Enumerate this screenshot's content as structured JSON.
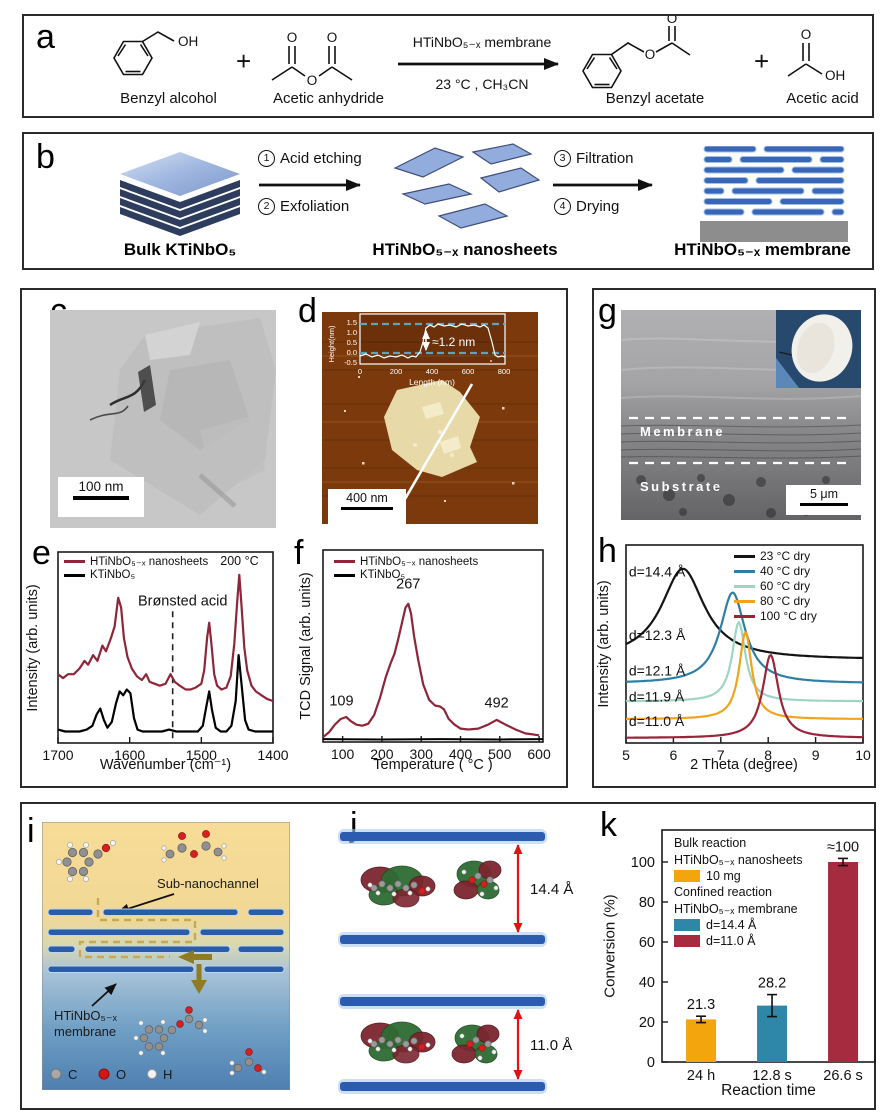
{
  "letters": {
    "a": "a",
    "b": "b",
    "c": "c",
    "d": "d",
    "e": "e",
    "f": "f",
    "g": "g",
    "h": "h",
    "i": "i",
    "j": "j",
    "k": "k"
  },
  "panel_a": {
    "reactant1_label": "Benzyl alcohol",
    "reactant2_label": "Acetic anhydride",
    "product1_label": "Benzyl acetate",
    "product2_label": "Acetic acid",
    "plus": "+",
    "arrow_top": "HTiNbO₅₋ₓ membrane",
    "arrow_bottom": "23 °C , CH₃CN",
    "atom_o": "O",
    "atom_oh": "OH"
  },
  "panel_b": {
    "steps": [
      {
        "num": "1",
        "label": "Acid etching"
      },
      {
        "num": "2",
        "label": "Exfoliation"
      },
      {
        "num": "3",
        "label": "Filtration"
      },
      {
        "num": "4",
        "label": "Drying"
      }
    ],
    "bulk_label": "Bulk KTiNbO₅",
    "nanosheet_label": "HTiNbO₅₋ₓ nanosheets",
    "membrane_label": "HTiNbO₅₋ₓ membrane"
  },
  "panel_c": {
    "scale_label": "100 nm"
  },
  "panel_d": {
    "scale_label": "400 nm",
    "inset": {
      "ylabel": "Height(nm)",
      "xlabel": "Length (nm)",
      "yticks": [
        "1.5",
        "1.0",
        "0.5",
        "0.0",
        "-0.5"
      ],
      "xticks": [
        "0",
        "200",
        "400",
        "600",
        "800"
      ],
      "step_label": "≈1.2 nm"
    }
  },
  "panel_g": {
    "membrane_label": "Membrane",
    "substrate_label": "Substrate",
    "scale_label": "5 μm"
  },
  "panel_i": {
    "channel_label": "Sub-nanochannel",
    "membrane_label_line1": "HTiNbO₅₋ₓ",
    "membrane_label_line2": "membrane",
    "legend": [
      {
        "symbol": "C"
      },
      {
        "symbol": "O"
      },
      {
        "symbol": "H"
      }
    ]
  },
  "panel_j": {
    "gap_top_label": "14.4 Å",
    "gap_bottom_label": "11.0 Å"
  },
  "chart_data": {
    "e": {
      "type": "line",
      "xlabel": "Wavenumber (cm⁻¹)",
      "ylabel": "Intensity (arb. units)",
      "xmin": 1400,
      "xmax": 1700,
      "x_reversed": true,
      "xticks": [
        1700,
        1600,
        1500,
        1400
      ],
      "vline": 1540,
      "vline_top": 0.31,
      "legend": [
        {
          "label": "HTiNbO₅₋ₓ nanosheets",
          "color": "#8E2639"
        },
        {
          "label": "KTiNbO₅",
          "color": "#000000"
        }
      ],
      "legend_note": "200 °C",
      "annotations": [
        {
          "x": 1526,
          "y": 0.72,
          "text": "Brønsted acid",
          "fs": 14.5
        }
      ],
      "series": [
        {
          "name": "HTiNbO₅₋ₓ nanosheets",
          "color": "#8E2639",
          "width": 2.2,
          "points": [
            [
              1700,
              0.36
            ],
            [
              1693,
              0.34
            ],
            [
              1686,
              0.36
            ],
            [
              1678,
              0.36
            ],
            [
              1670,
              0.39
            ],
            [
              1663,
              0.43
            ],
            [
              1658,
              0.41
            ],
            [
              1651,
              0.46
            ],
            [
              1645,
              0.43
            ],
            [
              1638,
              0.51
            ],
            [
              1633,
              0.48
            ],
            [
              1626,
              0.55
            ],
            [
              1621,
              0.61
            ],
            [
              1616,
              0.76
            ],
            [
              1612,
              0.71
            ],
            [
              1608,
              0.55
            ],
            [
              1603,
              0.45
            ],
            [
              1597,
              0.39
            ],
            [
              1590,
              0.35
            ],
            [
              1583,
              0.33
            ],
            [
              1577,
              0.36
            ],
            [
              1572,
              0.32
            ],
            [
              1565,
              0.31
            ],
            [
              1558,
              0.3
            ],
            [
              1550,
              0.31
            ],
            [
              1543,
              0.36
            ],
            [
              1537,
              0.32
            ],
            [
              1530,
              0.3
            ],
            [
              1522,
              0.28
            ],
            [
              1515,
              0.28
            ],
            [
              1508,
              0.29
            ],
            [
              1500,
              0.31
            ],
            [
              1496,
              0.38
            ],
            [
              1492,
              0.55
            ],
            [
              1489,
              0.63
            ],
            [
              1486,
              0.52
            ],
            [
              1482,
              0.36
            ],
            [
              1478,
              0.3
            ],
            [
              1472,
              0.28
            ],
            [
              1465,
              0.29
            ],
            [
              1459,
              0.35
            ],
            [
              1454,
              0.52
            ],
            [
              1450,
              0.74
            ],
            [
              1447,
              0.88
            ],
            [
              1444,
              0.72
            ],
            [
              1440,
              0.5
            ],
            [
              1436,
              0.38
            ],
            [
              1430,
              0.3
            ],
            [
              1424,
              0.27
            ],
            [
              1416,
              0.25
            ],
            [
              1408,
              0.23
            ],
            [
              1400,
              0.22
            ]
          ]
        },
        {
          "name": "KTiNbO₅",
          "color": "#000000",
          "width": 2.2,
          "points": [
            [
              1700,
              0.07
            ],
            [
              1690,
              0.06
            ],
            [
              1680,
              0.06
            ],
            [
              1670,
              0.06
            ],
            [
              1660,
              0.07
            ],
            [
              1652,
              0.09
            ],
            [
              1646,
              0.15
            ],
            [
              1641,
              0.18
            ],
            [
              1636,
              0.12
            ],
            [
              1631,
              0.08
            ],
            [
              1625,
              0.11
            ],
            [
              1619,
              0.21
            ],
            [
              1614,
              0.27
            ],
            [
              1609,
              0.25
            ],
            [
              1604,
              0.28
            ],
            [
              1599,
              0.26
            ],
            [
              1594,
              0.13
            ],
            [
              1589,
              0.07
            ],
            [
              1582,
              0.06
            ],
            [
              1575,
              0.06
            ],
            [
              1565,
              0.06
            ],
            [
              1555,
              0.06
            ],
            [
              1545,
              0.07
            ],
            [
              1535,
              0.06
            ],
            [
              1525,
              0.06
            ],
            [
              1515,
              0.06
            ],
            [
              1505,
              0.06
            ],
            [
              1498,
              0.09
            ],
            [
              1493,
              0.19
            ],
            [
              1489,
              0.27
            ],
            [
              1485,
              0.17
            ],
            [
              1480,
              0.08
            ],
            [
              1473,
              0.06
            ],
            [
              1465,
              0.06
            ],
            [
              1458,
              0.09
            ],
            [
              1452,
              0.22
            ],
            [
              1448,
              0.46
            ],
            [
              1444,
              0.31
            ],
            [
              1439,
              0.12
            ],
            [
              1434,
              0.07
            ],
            [
              1425,
              0.06
            ],
            [
              1412,
              0.06
            ],
            [
              1400,
              0.06
            ]
          ]
        }
      ]
    },
    "f": {
      "type": "line",
      "xlabel": "Temperature ( °C )",
      "ylabel": "TCD Signal (arb. units)",
      "xmin": 50,
      "xmax": 610,
      "xticks": [
        100,
        200,
        300,
        400,
        500,
        600
      ],
      "legend": [
        {
          "label": "HTiNbO₅₋ₓ nanosheets",
          "color": "#8E2639"
        },
        {
          "label": "KTiNbO₅",
          "color": "#000000"
        }
      ],
      "annotations": [
        {
          "x": 97,
          "y": 0.19,
          "text": "109",
          "fs": 14.5
        },
        {
          "x": 267,
          "y": 0.8,
          "text": "267",
          "fs": 14.5
        },
        {
          "x": 492,
          "y": 0.18,
          "text": "492",
          "fs": 14.5
        }
      ],
      "series": [
        {
          "name": "HTiNbO₅₋ₓ nanosheets",
          "color": "#8E2639",
          "width": 2.2,
          "points": [
            [
              50,
              0.025
            ],
            [
              65,
              0.05
            ],
            [
              80,
              0.09
            ],
            [
              95,
              0.12
            ],
            [
              109,
              0.13
            ],
            [
              120,
              0.11
            ],
            [
              135,
              0.09
            ],
            [
              150,
              0.085
            ],
            [
              165,
              0.095
            ],
            [
              180,
              0.14
            ],
            [
              195,
              0.23
            ],
            [
              210,
              0.34
            ],
            [
              222,
              0.41
            ],
            [
              232,
              0.46
            ],
            [
              242,
              0.54
            ],
            [
              252,
              0.63
            ],
            [
              260,
              0.7
            ],
            [
              267,
              0.72
            ],
            [
              274,
              0.67
            ],
            [
              282,
              0.55
            ],
            [
              292,
              0.43
            ],
            [
              305,
              0.3
            ],
            [
              320,
              0.22
            ],
            [
              335,
              0.19
            ],
            [
              348,
              0.185
            ],
            [
              358,
              0.17
            ],
            [
              370,
              0.12
            ],
            [
              385,
              0.09
            ],
            [
              400,
              0.07
            ],
            [
              420,
              0.065
            ],
            [
              445,
              0.07
            ],
            [
              470,
              0.09
            ],
            [
              492,
              0.115
            ],
            [
              515,
              0.09
            ],
            [
              540,
              0.065
            ],
            [
              565,
              0.045
            ],
            [
              600,
              0.035
            ]
          ]
        },
        {
          "name": "KTiNbO₅",
          "color": "#000000",
          "width": 2,
          "points": [
            [
              50,
              0.015
            ],
            [
              200,
              0.013
            ],
            [
              350,
              0.015
            ],
            [
              500,
              0.013
            ],
            [
              610,
              0.015
            ]
          ]
        }
      ]
    },
    "h": {
      "type": "line",
      "xlabel": "2 Theta (degree)",
      "ylabel": "Intensity (arb. units)",
      "xmin": 5,
      "xmax": 10,
      "xticks": [
        5,
        6,
        7,
        8,
        9,
        10
      ],
      "legend": [
        {
          "label": "23 °C dry",
          "color": "#141414"
        },
        {
          "label": "40 °C dry",
          "color": "#2E7FA4"
        },
        {
          "label": "60 °C dry",
          "color": "#9FD4C3"
        },
        {
          "label": "80 °C dry",
          "color": "#EFA41B"
        },
        {
          "label": "100 °C dry",
          "color": "#9A2439"
        }
      ],
      "annotations": [
        {
          "x": 5.06,
          "y": 0.84,
          "text": "d=14.4  Å",
          "anchor": "start",
          "fs": 14
        },
        {
          "x": 5.06,
          "y": 0.52,
          "text": "d=12.3  Å",
          "anchor": "start",
          "fs": 14
        },
        {
          "x": 5.06,
          "y": 0.34,
          "text": "d=12.1  Å",
          "anchor": "start",
          "fs": 14
        },
        {
          "x": 5.06,
          "y": 0.21,
          "text": "d=11.9  Å",
          "anchor": "start",
          "fs": 14
        },
        {
          "x": 5.06,
          "y": 0.085,
          "text": "d=11.0  Å",
          "anchor": "start",
          "fs": 14
        }
      ],
      "series": [
        {
          "name": "23 °C dry",
          "color": "#141414",
          "width": 2.2,
          "lorentzian": {
            "base": 0.42,
            "amp": 0.46,
            "c": 6.2,
            "w": 0.55
          }
        },
        {
          "name": "40 °C dry",
          "color": "#2E7FA4",
          "width": 2.2,
          "lorentzian": {
            "base": 0.3,
            "amp": 0.46,
            "c": 7.25,
            "w": 0.32
          }
        },
        {
          "name": "60 °C dry",
          "color": "#9FD4C3",
          "width": 2.2,
          "lorentzian": {
            "base": 0.21,
            "amp": 0.4,
            "c": 7.38,
            "w": 0.17
          }
        },
        {
          "name": "80 °C dry",
          "color": "#EFA41B",
          "width": 2.2,
          "lorentzian": {
            "base": 0.12,
            "amp": 0.44,
            "c": 7.52,
            "w": 0.16
          }
        },
        {
          "name": "100 °C dry",
          "color": "#9A2439",
          "width": 2.2,
          "lorentzian": {
            "base": 0.025,
            "amp": 0.42,
            "c": 8.05,
            "w": 0.2
          }
        }
      ]
    },
    "k": {
      "type": "bar",
      "xlabel": "Reaction time",
      "ylabel": "Conversion (%)",
      "ymin": 0,
      "ymax": 116,
      "yticks": [
        0,
        20,
        40,
        60,
        80,
        100
      ],
      "legend_rows": [
        {
          "text": "Bulk reaction"
        },
        {
          "text": "HTiNbO₅₋ₓ nanosheets"
        },
        {
          "swatch": "#F2A50C",
          "text": "10 mg"
        },
        {
          "text": "Confined reaction"
        },
        {
          "text": "HTiNbO₅₋ₓ membrane"
        },
        {
          "swatch": "#2E86A8",
          "text": "d=14.4 Å"
        },
        {
          "swatch": "#A62B3F",
          "text": "d=11.0 Å"
        }
      ],
      "bars": [
        {
          "category": "24 h",
          "value": 21.3,
          "err": 1.6,
          "label": "21.3",
          "color": "#F2A50C"
        },
        {
          "category": "12.8 s",
          "value": 28.2,
          "err": 5.5,
          "label": "28.2",
          "color": "#2E86A8"
        },
        {
          "category": "26.6 s",
          "value": 100,
          "err": 1.8,
          "label": "≈100",
          "color": "#A62B3F"
        }
      ]
    }
  }
}
